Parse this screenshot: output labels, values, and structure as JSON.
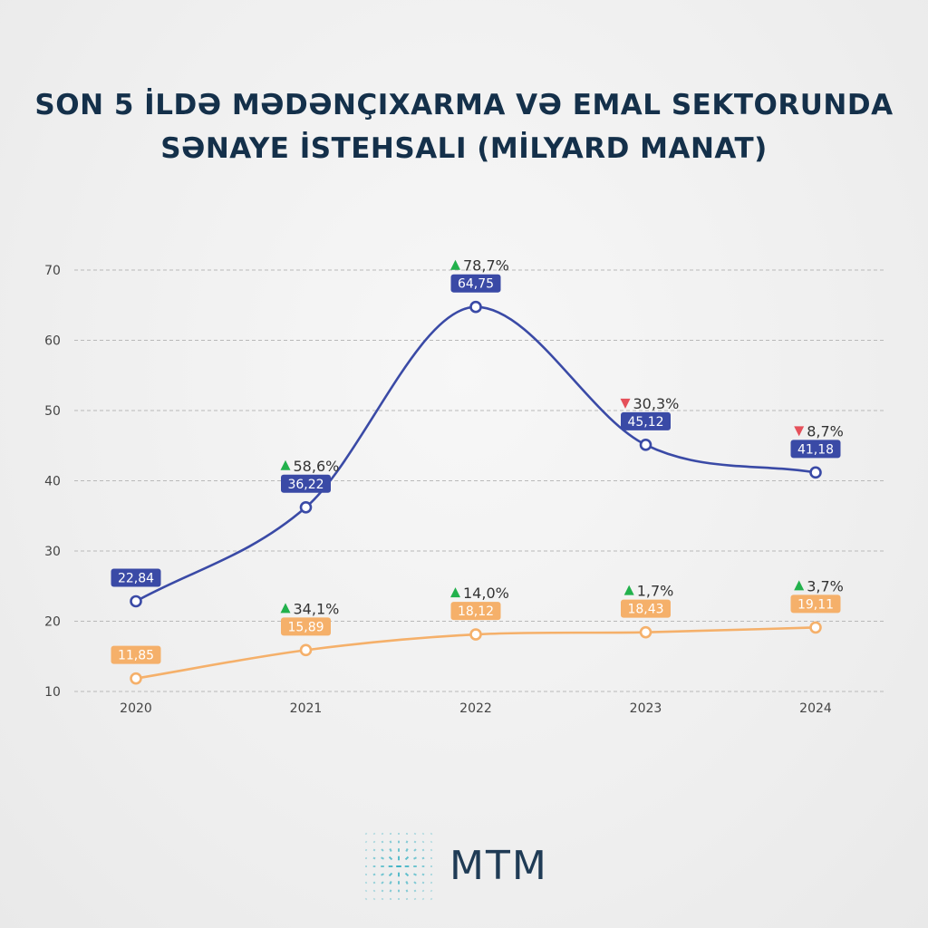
{
  "title": {
    "line1": "SON 5 İLDƏ MƏDƏNÇIXARMA VƏ EMAL SEKTORUNDA",
    "line2": "SƏNAYE İSTEHSALI (MİLYARD MANAT)"
  },
  "brand": {
    "name": "MTM",
    "color": "#1f3b55",
    "accent": "#3fb3c4"
  },
  "chart_data": {
    "type": "line",
    "x": [
      "2020",
      "2021",
      "2022",
      "2023",
      "2024"
    ],
    "ylim": [
      10,
      70
    ],
    "yticks": [
      10,
      20,
      30,
      40,
      50,
      60,
      70
    ],
    "grid": true,
    "series": [
      {
        "values": [
          22.84,
          36.22,
          64.75,
          45.12,
          41.18
        ],
        "labels": [
          "22,84",
          "36,22",
          "64,75",
          "45,12",
          "41,18"
        ],
        "changes": [
          "",
          "58,6%",
          "78,7%",
          "30,3%",
          "8,7%"
        ],
        "directions": [
          "",
          "up",
          "up",
          "down",
          "down"
        ],
        "color": "#3a4aa6"
      },
      {
        "values": [
          11.85,
          15.89,
          18.12,
          18.43,
          19.11
        ],
        "labels": [
          "11,85",
          "15,89",
          "18,12",
          "18,43",
          "19,11"
        ],
        "changes": [
          "",
          "34,1%",
          "14,0%",
          "1,7%",
          "3,7%"
        ],
        "directions": [
          "",
          "up",
          "up",
          "up",
          "up"
        ],
        "color": "#f5b06a"
      }
    ],
    "up_color": "#22b14c",
    "down_color": "#e5505a"
  }
}
